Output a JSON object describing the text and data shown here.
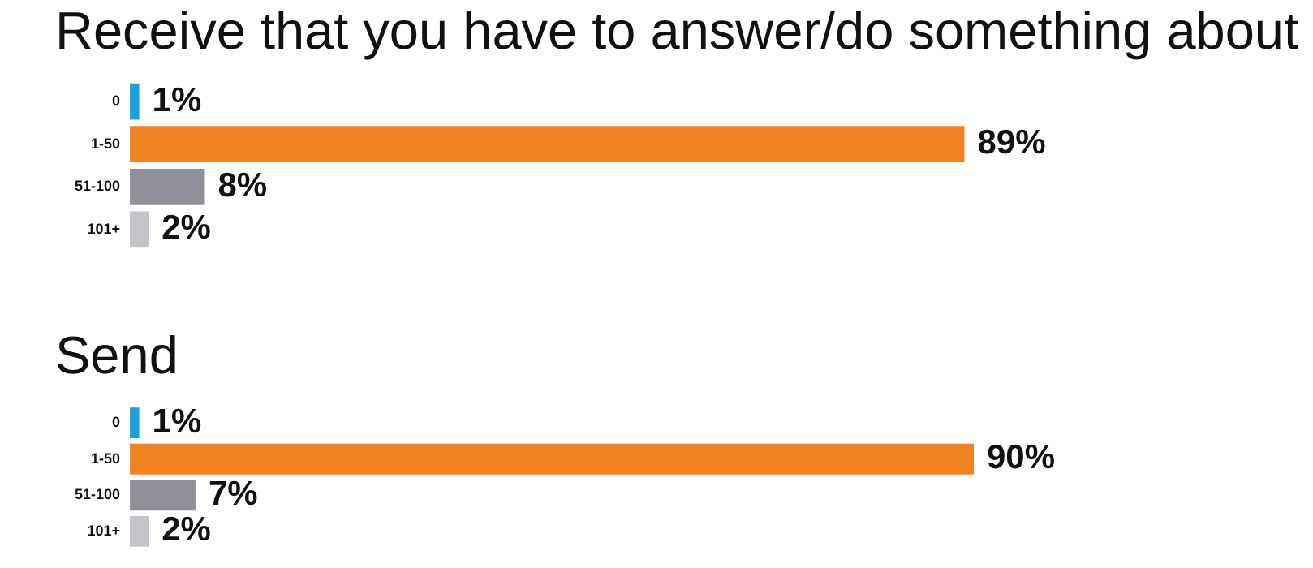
{
  "chart_data": [
    {
      "type": "bar",
      "orientation": "horizontal",
      "title": "Receive that you have to answer/do something about",
      "categories": [
        "0",
        "1-50",
        "51-100",
        "101+"
      ],
      "values": [
        1,
        89,
        8,
        2
      ],
      "colors": [
        "#1ba1d8",
        "#f28322",
        "#8e8f99",
        "#c3c4c9"
      ],
      "value_labels": [
        "1%",
        "89%",
        "8%",
        "2%"
      ],
      "tick_labels": "y",
      "grid": false,
      "legend": false
    },
    {
      "type": "bar",
      "orientation": "horizontal",
      "title": "Send",
      "categories": [
        "0",
        "1-50",
        "51-100",
        "101+"
      ],
      "values": [
        1,
        90,
        7,
        2
      ],
      "colors": [
        "#1ba1d8",
        "#f28322",
        "#8e8f99",
        "#c3c4c9"
      ],
      "value_labels": [
        "1%",
        "90%",
        "7%",
        "2%"
      ],
      "tick_labels": "y",
      "grid": false,
      "legend": false
    }
  ]
}
